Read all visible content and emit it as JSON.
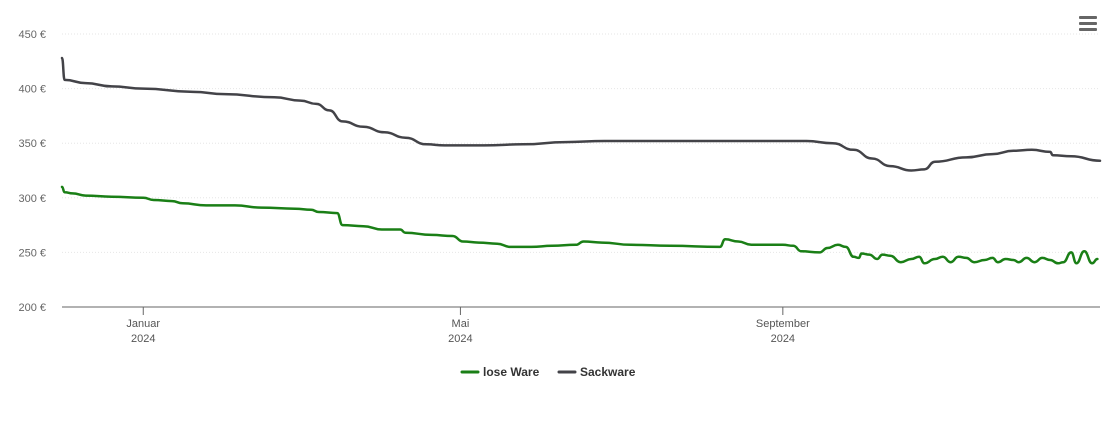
{
  "chart_data": {
    "type": "line",
    "title": "",
    "xlabel": "",
    "ylabel": "",
    "ylim": [
      200,
      450
    ],
    "y_ticks": [
      {
        "value": 200,
        "label": "200 €"
      },
      {
        "value": 250,
        "label": "250 €"
      },
      {
        "value": 300,
        "label": "300 €"
      },
      {
        "value": 350,
        "label": "350 €"
      },
      {
        "value": 400,
        "label": "400 €"
      },
      {
        "value": 450,
        "label": "450 €"
      }
    ],
    "x_ticks": [
      {
        "date": "2024-01-01",
        "label": "Januar",
        "sublabel": "2024"
      },
      {
        "date": "2024-05-01",
        "label": "Mai",
        "sublabel": "2024"
      },
      {
        "date": "2024-09-01",
        "label": "September",
        "sublabel": "2024"
      }
    ],
    "xlim": [
      "2023-12-01",
      "2024-12-31"
    ],
    "grid": "horizontal",
    "legend_position": "bottom-center",
    "series": [
      {
        "name": "lose Ware",
        "color": "#1a7f16",
        "points": [
          [
            "2023-12-01",
            310
          ],
          [
            "2023-12-02",
            305
          ],
          [
            "2023-12-05",
            304
          ],
          [
            "2023-12-10",
            302
          ],
          [
            "2023-12-20",
            301
          ],
          [
            "2024-01-01",
            300
          ],
          [
            "2024-01-05",
            298
          ],
          [
            "2024-01-12",
            297
          ],
          [
            "2024-01-16",
            295
          ],
          [
            "2024-01-25",
            293
          ],
          [
            "2024-02-05",
            293
          ],
          [
            "2024-02-15",
            291
          ],
          [
            "2024-02-28",
            290
          ],
          [
            "2024-03-05",
            289
          ],
          [
            "2024-03-08",
            287
          ],
          [
            "2024-03-15",
            286
          ],
          [
            "2024-03-17",
            275
          ],
          [
            "2024-03-25",
            274
          ],
          [
            "2024-04-01",
            271
          ],
          [
            "2024-04-08",
            271
          ],
          [
            "2024-04-10",
            268
          ],
          [
            "2024-04-20",
            266
          ],
          [
            "2024-04-28",
            265
          ],
          [
            "2024-05-02",
            260
          ],
          [
            "2024-05-08",
            259
          ],
          [
            "2024-05-15",
            258
          ],
          [
            "2024-05-20",
            255
          ],
          [
            "2024-05-28",
            255
          ],
          [
            "2024-06-05",
            256
          ],
          [
            "2024-06-14",
            257
          ],
          [
            "2024-06-17",
            260
          ],
          [
            "2024-06-24",
            259
          ],
          [
            "2024-07-05",
            257
          ],
          [
            "2024-07-20",
            256
          ],
          [
            "2024-08-08",
            255
          ],
          [
            "2024-08-10",
            262
          ],
          [
            "2024-08-15",
            260
          ],
          [
            "2024-08-20",
            257
          ],
          [
            "2024-09-01",
            257
          ],
          [
            "2024-09-05",
            256
          ],
          [
            "2024-09-08",
            251
          ],
          [
            "2024-09-15",
            250
          ],
          [
            "2024-09-18",
            254
          ],
          [
            "2024-09-22",
            257
          ],
          [
            "2024-09-25",
            255
          ],
          [
            "2024-09-28",
            246
          ],
          [
            "2024-09-30",
            245
          ],
          [
            "2024-10-01",
            249
          ],
          [
            "2024-10-04",
            248
          ],
          [
            "2024-10-07",
            244
          ],
          [
            "2024-10-09",
            248
          ],
          [
            "2024-10-12",
            247
          ],
          [
            "2024-10-16",
            241
          ],
          [
            "2024-10-20",
            244
          ],
          [
            "2024-10-23",
            246
          ],
          [
            "2024-10-25",
            240
          ],
          [
            "2024-10-29",
            244
          ],
          [
            "2024-11-01",
            246
          ],
          [
            "2024-11-04",
            241
          ],
          [
            "2024-11-07",
            246
          ],
          [
            "2024-11-10",
            245
          ],
          [
            "2024-11-13",
            241
          ],
          [
            "2024-11-17",
            243
          ],
          [
            "2024-11-20",
            245
          ],
          [
            "2024-11-22",
            241
          ],
          [
            "2024-11-25",
            244
          ],
          [
            "2024-11-28",
            243
          ],
          [
            "2024-11-30",
            241
          ],
          [
            "2024-12-03",
            245
          ],
          [
            "2024-12-06",
            241
          ],
          [
            "2024-12-09",
            245
          ],
          [
            "2024-12-12",
            243
          ],
          [
            "2024-12-15",
            240
          ],
          [
            "2024-12-17",
            241
          ],
          [
            "2024-12-20",
            250
          ],
          [
            "2024-12-22",
            240
          ],
          [
            "2024-12-25",
            251
          ],
          [
            "2024-12-28",
            240
          ],
          [
            "2024-12-30",
            244
          ]
        ]
      },
      {
        "name": "Sackware",
        "color": "#434348",
        "points": [
          [
            "2023-12-01",
            428
          ],
          [
            "2023-12-02",
            408
          ],
          [
            "2023-12-10",
            405
          ],
          [
            "2023-12-20",
            402
          ],
          [
            "2024-01-01",
            400
          ],
          [
            "2024-01-20",
            397
          ],
          [
            "2024-02-01",
            395
          ],
          [
            "2024-02-20",
            392
          ],
          [
            "2024-03-01",
            389
          ],
          [
            "2024-03-07",
            386
          ],
          [
            "2024-03-12",
            380
          ],
          [
            "2024-03-17",
            370
          ],
          [
            "2024-03-25",
            365
          ],
          [
            "2024-04-02",
            360
          ],
          [
            "2024-04-10",
            355
          ],
          [
            "2024-04-18",
            349
          ],
          [
            "2024-04-25",
            348
          ],
          [
            "2024-05-10",
            348
          ],
          [
            "2024-05-25",
            349
          ],
          [
            "2024-06-10",
            351
          ],
          [
            "2024-06-25",
            352
          ],
          [
            "2024-08-01",
            352
          ],
          [
            "2024-09-10",
            352
          ],
          [
            "2024-09-20",
            350
          ],
          [
            "2024-09-28",
            344
          ],
          [
            "2024-10-05",
            336
          ],
          [
            "2024-10-12",
            329
          ],
          [
            "2024-10-20",
            325
          ],
          [
            "2024-10-25",
            326
          ],
          [
            "2024-10-29",
            333
          ],
          [
            "2024-11-10",
            337
          ],
          [
            "2024-11-20",
            340
          ],
          [
            "2024-11-28",
            343
          ],
          [
            "2024-12-05",
            344
          ],
          [
            "2024-12-12",
            342
          ],
          [
            "2024-12-13",
            339
          ],
          [
            "2024-12-20",
            338
          ],
          [
            "2024-12-31",
            334
          ]
        ]
      }
    ]
  }
}
